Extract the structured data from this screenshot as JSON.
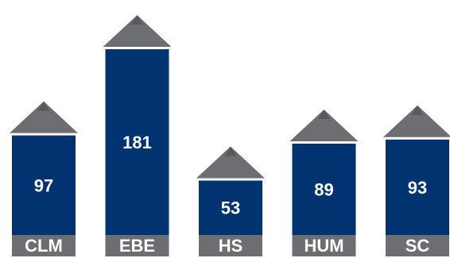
{
  "chart_data": {
    "type": "bar",
    "categories": [
      "CLM",
      "EBE",
      "HS",
      "HUM",
      "SC"
    ],
    "values": [
      97,
      181,
      53,
      89,
      93
    ],
    "title": "",
    "xlabel": "",
    "ylabel": "",
    "ylim": [
      0,
      181
    ],
    "grid": false,
    "legend": "none"
  },
  "colors": {
    "bar": "#003370",
    "pencil_tip": "#6d6e71",
    "pencil_tip_dark": "#58595b",
    "label_band": "#6d6e71",
    "value_text": "#ffffff",
    "category_text": "#ffffff"
  }
}
